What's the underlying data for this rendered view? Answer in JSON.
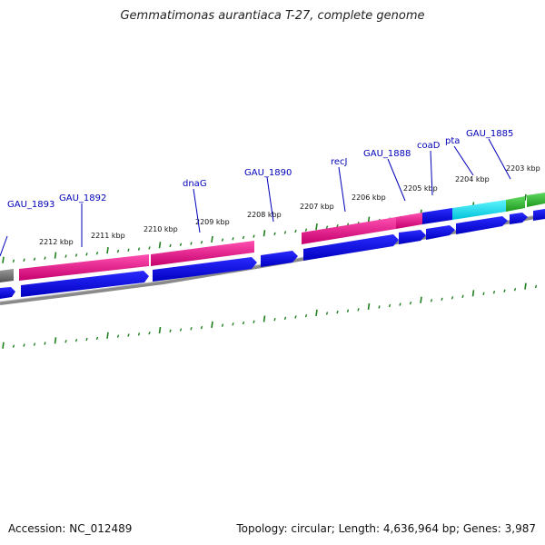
{
  "header": {
    "title": "Gemmatimonas aurantiaca T-27, complete genome"
  },
  "footer": {
    "accession": "Accession: NC_012489",
    "topology": "Topology: circular; Length: 4,636,964 bp; Genes: 3,987"
  },
  "colors": {
    "background": "#ffffff",
    "backbone": "#888888",
    "tick": "#1f7f1f",
    "gene_label": "#0000b8",
    "feature_magenta": "#e8168c",
    "feature_blue": "#0000ee",
    "feature_cyan": "#00e0f0",
    "feature_green": "#2db52d",
    "feature_gray": "#7a7a7a"
  },
  "kbp_labels": [
    "2212 kbp",
    "2211 kbp",
    "2210 kbp",
    "2209 kbp",
    "2208 kbp",
    "2207 kbp",
    "2206 kbp",
    "2205 kbp",
    "2204 kbp",
    "2203 kbp"
  ],
  "gene_labels": [
    "GAU_1893",
    "GAU_1892",
    "dnaG",
    "GAU_1890",
    "recJ",
    "GAU_1888",
    "coaD",
    "pta",
    "GAU_1885"
  ]
}
